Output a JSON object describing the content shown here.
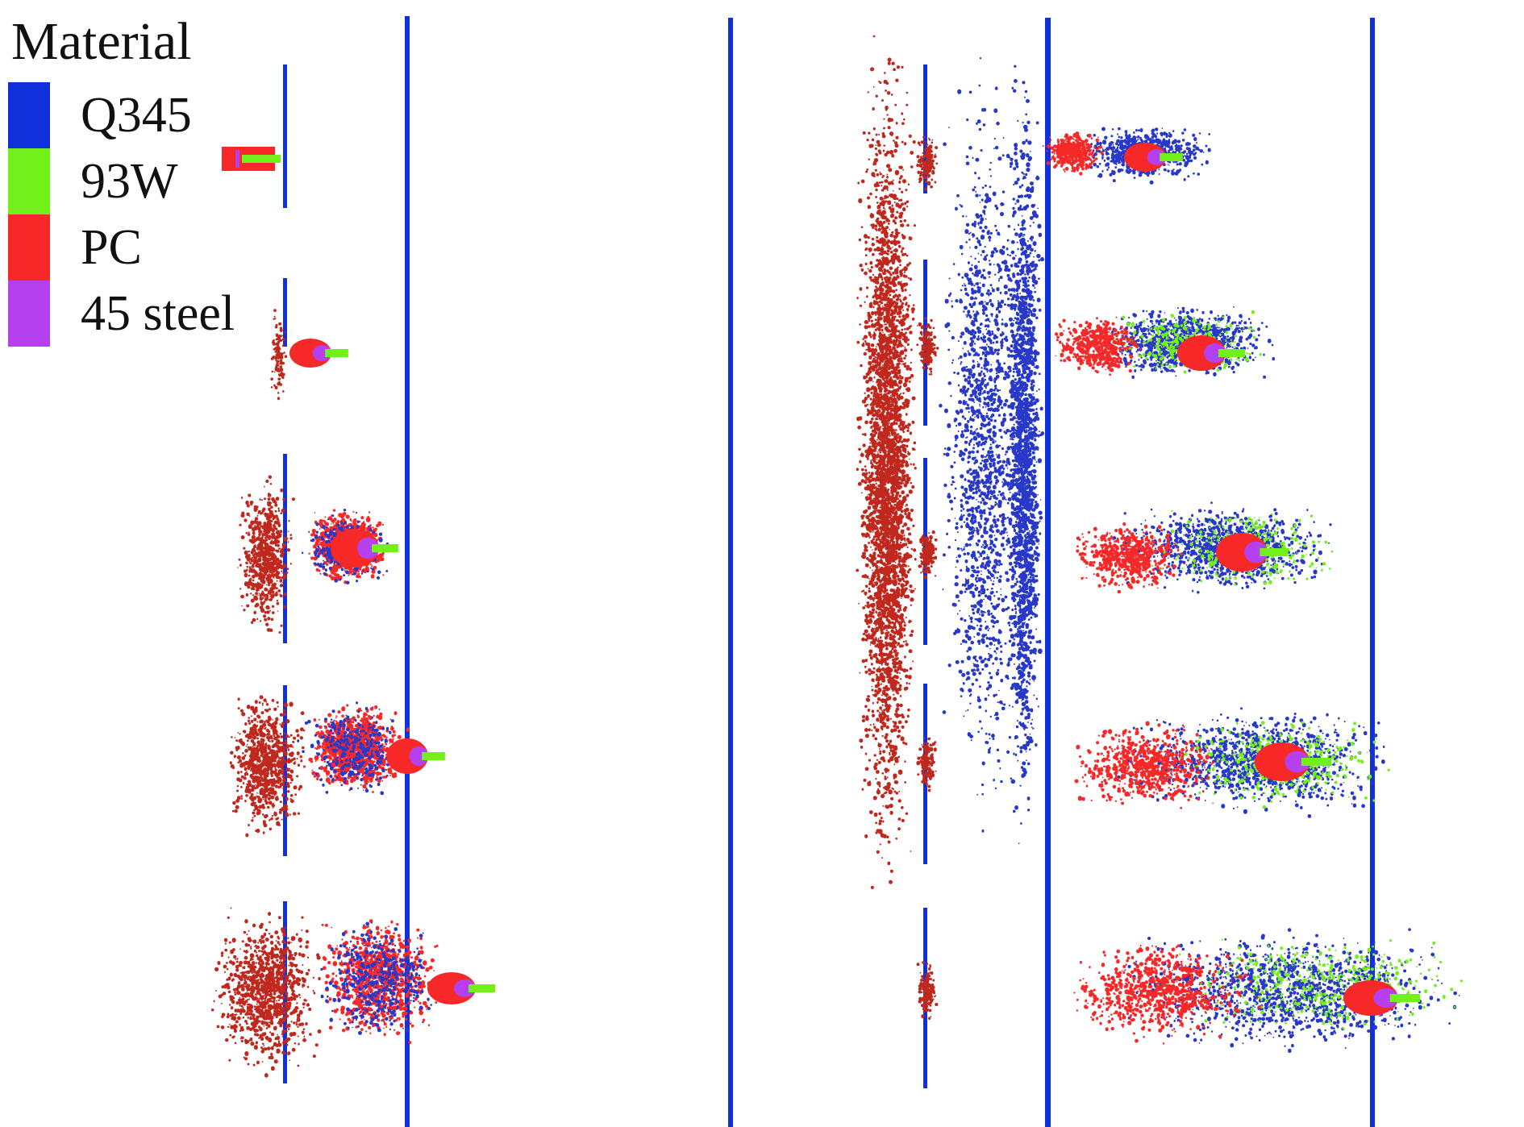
{
  "legend": {
    "title": "Material",
    "items": [
      {
        "label": "Q345",
        "color": "#1030dc"
      },
      {
        "label": "93W",
        "color": "#72f01a"
      },
      {
        "label": "PC",
        "color": "#f62828"
      },
      {
        "label": "45 steel",
        "color": "#b440f0"
      }
    ]
  },
  "colors": {
    "plate": "#1030dc",
    "pc": "#f62828",
    "pc_debris": "#c0281e",
    "tungsten": "#72f01a",
    "steel": "#b440f0",
    "dark_debris": "#2838c8"
  },
  "panels": [
    "left",
    "right"
  ]
}
